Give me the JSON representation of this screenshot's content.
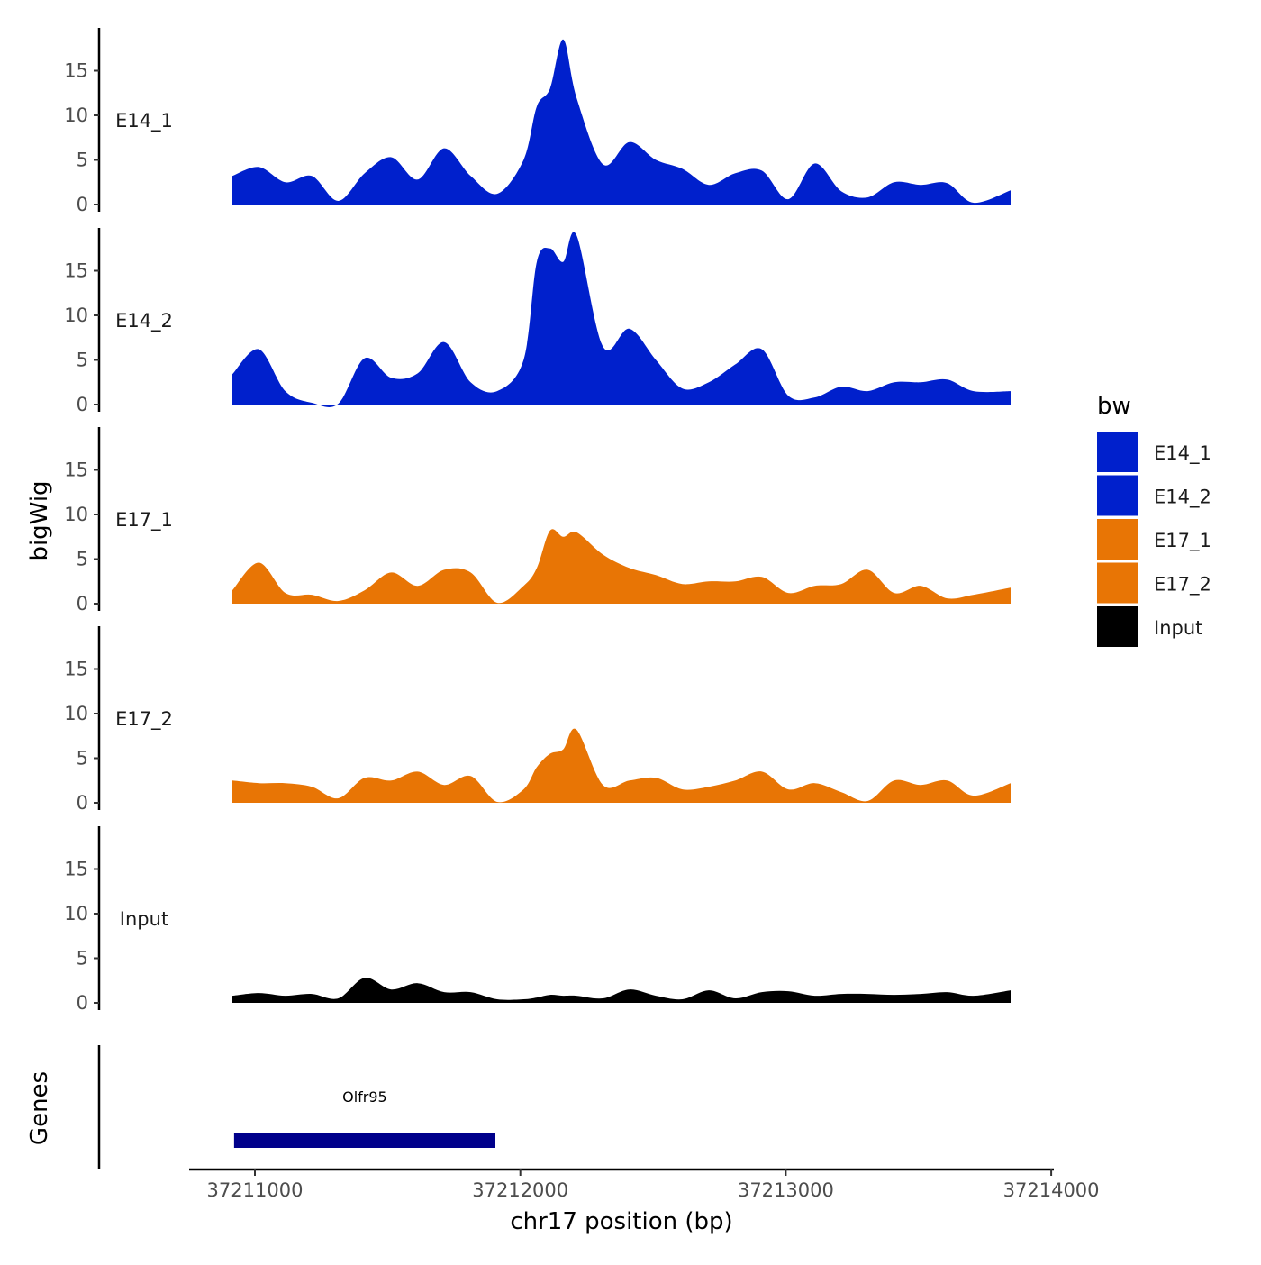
{
  "chart_data": {
    "type": "area",
    "chromosome": "chr17",
    "xlabel": "chr17 position (bp)",
    "ylabel": "bigWig",
    "xlim": [
      37210900,
      37213840
    ],
    "ylim": [
      0,
      20
    ],
    "x_ticks": [
      37211000,
      37212000,
      37213000,
      37214000
    ],
    "x_tick_labels": [
      "37211000",
      "37212000",
      "37213000",
      "37214000"
    ],
    "y_ticks": [
      0,
      5,
      10,
      15
    ],
    "y_tick_labels": [
      "0",
      "5",
      "10",
      "15"
    ],
    "legend": {
      "title": "bw",
      "position": "right",
      "entries": [
        {
          "label": "E14_1",
          "color": "#0020CC"
        },
        {
          "label": "E14_2",
          "color": "#0020CC"
        },
        {
          "label": "E17_1",
          "color": "#E87505"
        },
        {
          "label": "E17_2",
          "color": "#E87505"
        },
        {
          "label": "Input",
          "color": "#000000"
        }
      ]
    },
    "x": [
      37210900,
      37211000,
      37211100,
      37211200,
      37211300,
      37211400,
      37211500,
      37211600,
      37211700,
      37211800,
      37211900,
      37212000,
      37212050,
      37212100,
      37212150,
      37212200,
      37212300,
      37212400,
      37212500,
      37212600,
      37212700,
      37212800,
      37212900,
      37213000,
      37213100,
      37213200,
      37213300,
      37213400,
      37213500,
      37213600,
      37213700,
      37213840
    ],
    "series": [
      {
        "name": "E14_1",
        "track_label": "E14_1",
        "color": "#0020CC",
        "values": [
          3.2,
          4.2,
          2.5,
          3.2,
          0.4,
          3.5,
          5.3,
          2.8,
          6.3,
          3.2,
          1.2,
          5.0,
          11.0,
          13.0,
          18.5,
          12.0,
          4.5,
          7.0,
          5.0,
          4.0,
          2.2,
          3.5,
          3.8,
          0.6,
          4.6,
          1.5,
          0.8,
          2.5,
          2.2,
          2.4,
          0.2,
          1.6
        ]
      },
      {
        "name": "E14_2",
        "track_label": "E14_2",
        "color": "#0020CC",
        "values": [
          3.4,
          6.2,
          1.5,
          0.2,
          0.1,
          5.2,
          3.0,
          3.5,
          7.0,
          2.5,
          1.5,
          5.0,
          16.0,
          17.5,
          16.0,
          19.0,
          6.5,
          8.5,
          5.0,
          1.8,
          2.5,
          4.5,
          6.2,
          1.0,
          0.8,
          2.0,
          1.5,
          2.5,
          2.5,
          2.8,
          1.5,
          1.5
        ]
      },
      {
        "name": "E17_1",
        "track_label": "E17_1",
        "color": "#E87505",
        "values": [
          1.5,
          4.6,
          1.2,
          1.0,
          0.3,
          1.5,
          3.5,
          2.0,
          3.8,
          3.5,
          0.1,
          2.0,
          4.0,
          8.2,
          7.5,
          8.0,
          5.5,
          4.0,
          3.2,
          2.2,
          2.5,
          2.5,
          3.0,
          1.2,
          2.0,
          2.2,
          3.8,
          1.2,
          2.0,
          0.6,
          1.0,
          1.8
        ]
      },
      {
        "name": "E17_2",
        "track_label": "E17_2",
        "color": "#E87505",
        "values": [
          2.5,
          2.2,
          2.2,
          1.8,
          0.5,
          2.8,
          2.5,
          3.5,
          2.0,
          3.0,
          0.1,
          1.5,
          4.0,
          5.5,
          6.0,
          8.2,
          2.0,
          2.5,
          2.8,
          1.5,
          1.8,
          2.5,
          3.5,
          1.5,
          2.2,
          1.2,
          0.2,
          2.5,
          2.0,
          2.5,
          0.8,
          2.2
        ]
      },
      {
        "name": "Input",
        "track_label": "Input",
        "color": "#000000",
        "values": [
          0.8,
          1.1,
          0.8,
          1.0,
          0.5,
          2.8,
          1.5,
          2.2,
          1.2,
          1.2,
          0.4,
          0.4,
          0.6,
          0.9,
          0.8,
          0.8,
          0.5,
          1.5,
          0.8,
          0.4,
          1.4,
          0.5,
          1.2,
          1.3,
          0.8,
          1.0,
          1.0,
          0.9,
          1.0,
          1.2,
          0.8,
          1.4
        ]
      }
    ],
    "genes_track": {
      "title": "Genes",
      "genes": [
        {
          "name": "Olfr95",
          "start": 37210920,
          "end": 37211880,
          "color": "#00008B"
        }
      ]
    }
  }
}
